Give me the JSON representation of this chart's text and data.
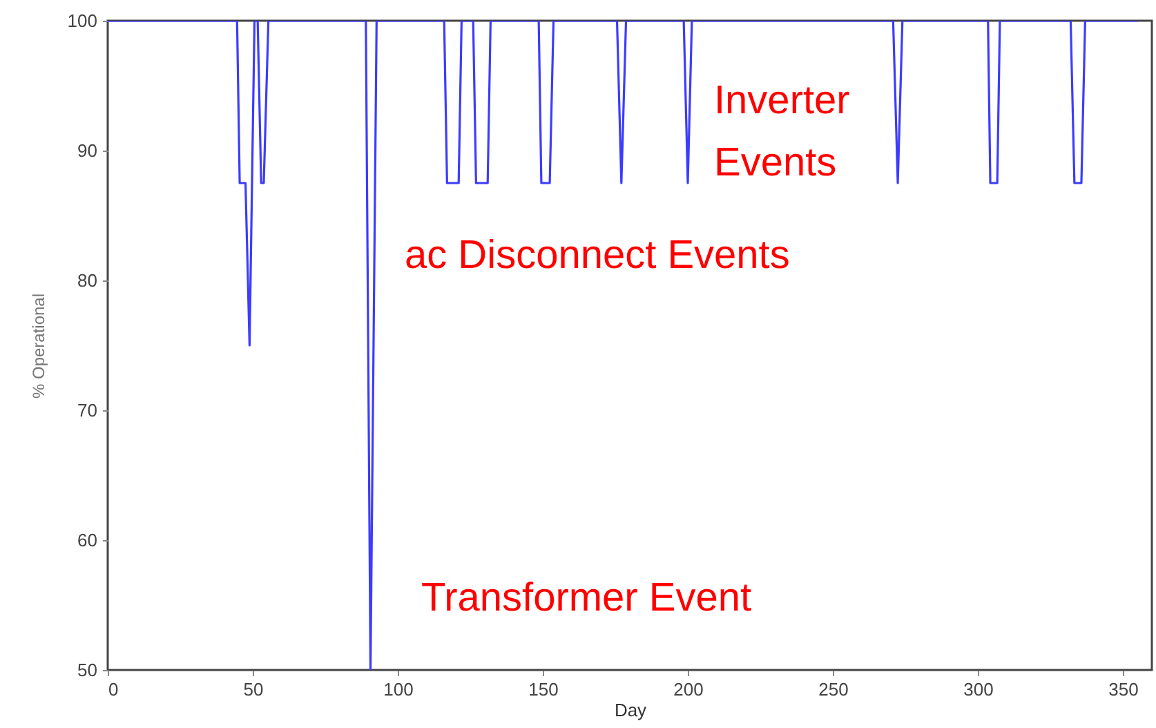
{
  "chart_data": {
    "type": "line",
    "xlabel": "Day",
    "ylabel": "% Operational",
    "x": [
      0,
      44.6,
      45.5,
      47.5,
      48.9,
      50.6,
      51.7,
      52.9,
      53.8,
      55.4,
      89,
      90.6,
      92.7,
      116,
      117,
      121,
      122,
      126,
      127,
      131,
      132,
      148.6,
      149.5,
      152.4,
      153.7,
      175.6,
      177.1,
      178.7,
      198.6,
      200,
      201.4,
      270.8,
      272.4,
      274,
      303.5,
      304.3,
      306.7,
      307.6,
      332,
      333.3,
      335.7,
      337,
      355
    ],
    "series": [
      {
        "color": "#3c3cff",
        "values": [
          100,
          100,
          87.5,
          87.5,
          75,
          100,
          100,
          87.5,
          87.5,
          100,
          100,
          50,
          100,
          100,
          87.5,
          87.5,
          100,
          100,
          87.5,
          87.5,
          100,
          100,
          87.5,
          87.5,
          100,
          100,
          87.5,
          100,
          100,
          87.5,
          100,
          100,
          87.5,
          100,
          100,
          87.5,
          87.5,
          100,
          100,
          87.5,
          87.5,
          100,
          100
        ]
      }
    ],
    "xlim": [
      0,
      360
    ],
    "xticks": [
      0,
      50,
      100,
      150,
      200,
      250,
      300,
      350
    ],
    "ylim": [
      50,
      100
    ],
    "yticks": [
      50,
      60,
      70,
      80,
      90,
      100
    ],
    "grid": false,
    "marker": "none",
    "line_style": "solid",
    "annotations": [
      "Inverter Events",
      "ac Disconnect Events",
      "Transformer Event"
    ]
  }
}
